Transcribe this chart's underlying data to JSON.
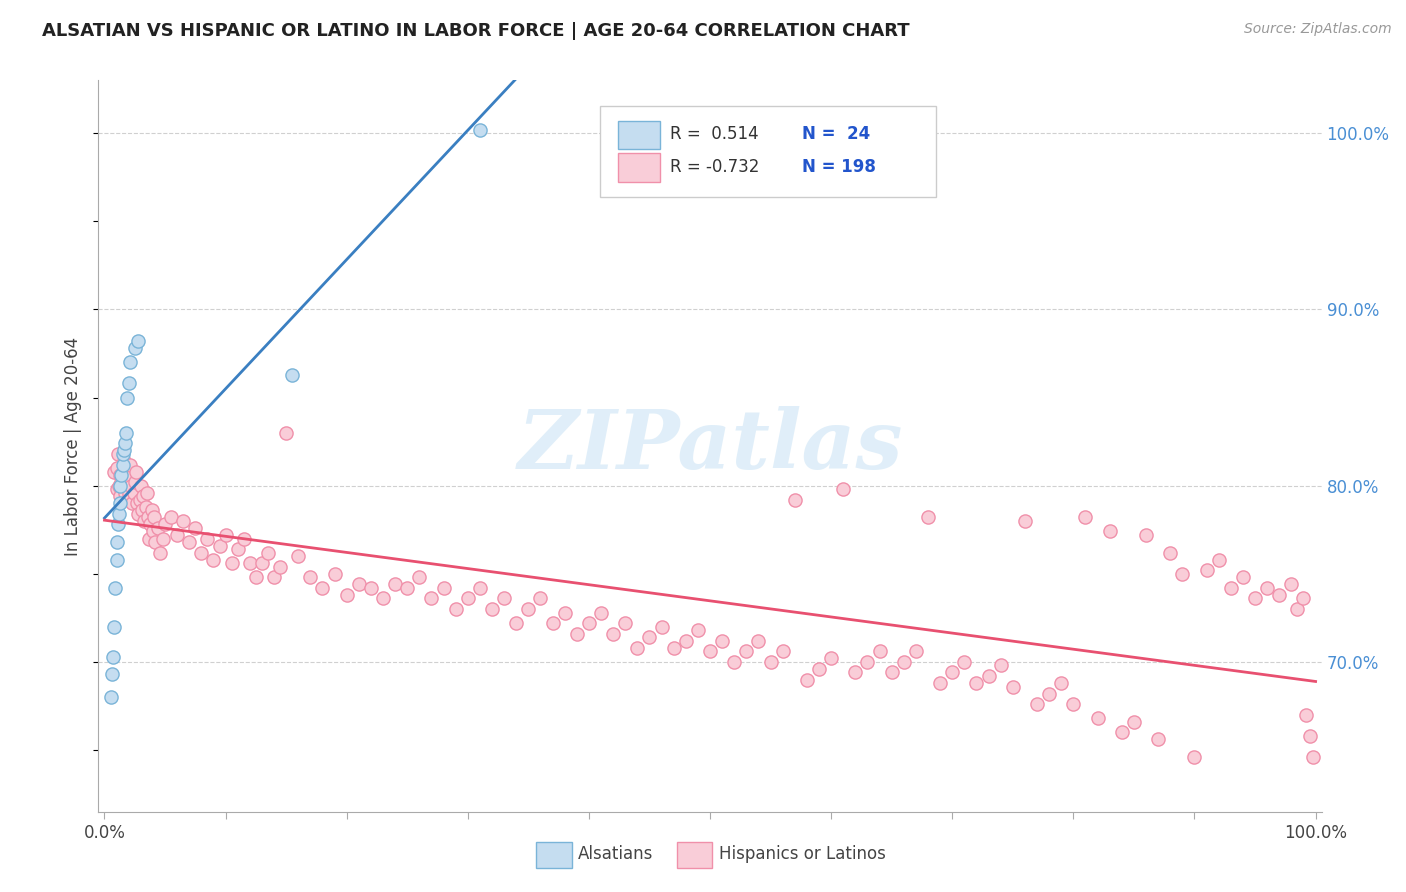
{
  "title": "ALSATIAN VS HISPANIC OR LATINO IN LABOR FORCE | AGE 20-64 CORRELATION CHART",
  "source": "Source: ZipAtlas.com",
  "ylabel": "In Labor Force | Age 20-64",
  "watermark": "ZIPatlas",
  "blue_edge": "#7ab4d8",
  "blue_fill": "#c5ddf0",
  "pink_edge": "#f090aa",
  "pink_fill": "#f9cdd8",
  "line_blue": "#3a7fc1",
  "line_pink": "#e85070",
  "right_tick_color": "#4a8fd4",
  "text_color": "#444444",
  "grid_color": "#d0d0d0",
  "xlim": [
    -0.005,
    1.005
  ],
  "ylim": [
    0.615,
    1.03
  ],
  "yticks": [
    0.7,
    0.8,
    0.9,
    1.0
  ],
  "ytick_labels": [
    "70.0%",
    "80.0%",
    "90.0%",
    "100.0%"
  ],
  "alsatian_x": [
    0.005,
    0.006,
    0.007,
    0.008,
    0.009,
    0.01,
    0.01,
    0.011,
    0.012,
    0.013,
    0.013,
    0.014,
    0.015,
    0.015,
    0.016,
    0.017,
    0.018,
    0.019,
    0.02,
    0.021,
    0.025,
    0.028,
    0.155,
    0.31
  ],
  "alsatian_y": [
    0.68,
    0.693,
    0.703,
    0.72,
    0.742,
    0.758,
    0.768,
    0.778,
    0.784,
    0.79,
    0.8,
    0.806,
    0.812,
    0.818,
    0.82,
    0.824,
    0.83,
    0.85,
    0.858,
    0.87,
    0.878,
    0.882,
    0.863,
    1.002
  ],
  "hispanic_x_low": [
    0.008,
    0.01,
    0.01,
    0.011,
    0.012,
    0.013,
    0.013,
    0.014,
    0.015,
    0.016,
    0.017,
    0.018,
    0.019,
    0.02,
    0.02,
    0.021,
    0.022,
    0.023,
    0.024,
    0.025,
    0.026,
    0.027,
    0.028,
    0.029,
    0.03,
    0.031,
    0.032,
    0.033,
    0.034,
    0.035,
    0.036,
    0.037,
    0.038,
    0.039,
    0.04,
    0.041,
    0.042,
    0.044,
    0.046,
    0.048
  ],
  "hispanic_y_low": [
    0.808,
    0.798,
    0.81,
    0.818,
    0.8,
    0.794,
    0.806,
    0.802,
    0.808,
    0.814,
    0.796,
    0.808,
    0.8,
    0.795,
    0.805,
    0.812,
    0.8,
    0.79,
    0.796,
    0.802,
    0.808,
    0.79,
    0.784,
    0.792,
    0.8,
    0.786,
    0.794,
    0.78,
    0.788,
    0.796,
    0.782,
    0.77,
    0.778,
    0.786,
    0.774,
    0.782,
    0.768,
    0.776,
    0.762,
    0.77
  ],
  "hispanic_x_mid": [
    0.05,
    0.055,
    0.06,
    0.065,
    0.07,
    0.075,
    0.08,
    0.085,
    0.09,
    0.095,
    0.1,
    0.105,
    0.11,
    0.115,
    0.12,
    0.125,
    0.13,
    0.135,
    0.14,
    0.145,
    0.15,
    0.16,
    0.17,
    0.18,
    0.19,
    0.2,
    0.21,
    0.22,
    0.23,
    0.24,
    0.25,
    0.26,
    0.27,
    0.28,
    0.29,
    0.3,
    0.31,
    0.32,
    0.33,
    0.34,
    0.35,
    0.36,
    0.37,
    0.38,
    0.39,
    0.4,
    0.41,
    0.42,
    0.43,
    0.44,
    0.45,
    0.46,
    0.47,
    0.48,
    0.49,
    0.5,
    0.51,
    0.52,
    0.53,
    0.54,
    0.55,
    0.56,
    0.57,
    0.58,
    0.59,
    0.6
  ],
  "hispanic_y_mid": [
    0.778,
    0.782,
    0.772,
    0.78,
    0.768,
    0.776,
    0.762,
    0.77,
    0.758,
    0.766,
    0.772,
    0.756,
    0.764,
    0.77,
    0.756,
    0.748,
    0.756,
    0.762,
    0.748,
    0.754,
    0.83,
    0.76,
    0.748,
    0.742,
    0.75,
    0.738,
    0.744,
    0.742,
    0.736,
    0.744,
    0.742,
    0.748,
    0.736,
    0.742,
    0.73,
    0.736,
    0.742,
    0.73,
    0.736,
    0.722,
    0.73,
    0.736,
    0.722,
    0.728,
    0.716,
    0.722,
    0.728,
    0.716,
    0.722,
    0.708,
    0.714,
    0.72,
    0.708,
    0.712,
    0.718,
    0.706,
    0.712,
    0.7,
    0.706,
    0.712,
    0.7,
    0.706,
    0.792,
    0.69,
    0.696,
    0.702
  ],
  "hispanic_x_high": [
    0.61,
    0.62,
    0.63,
    0.64,
    0.65,
    0.66,
    0.67,
    0.68,
    0.69,
    0.7,
    0.71,
    0.72,
    0.73,
    0.74,
    0.75,
    0.76,
    0.77,
    0.78,
    0.79,
    0.8,
    0.81,
    0.82,
    0.83,
    0.84,
    0.85,
    0.86,
    0.87,
    0.88,
    0.89,
    0.9,
    0.91,
    0.92,
    0.93,
    0.94,
    0.95,
    0.96,
    0.97,
    0.98,
    0.985,
    0.99,
    0.992,
    0.995,
    0.998
  ],
  "hispanic_y_high": [
    0.798,
    0.694,
    0.7,
    0.706,
    0.694,
    0.7,
    0.706,
    0.782,
    0.688,
    0.694,
    0.7,
    0.688,
    0.692,
    0.698,
    0.686,
    0.78,
    0.676,
    0.682,
    0.688,
    0.676,
    0.782,
    0.668,
    0.774,
    0.66,
    0.666,
    0.772,
    0.656,
    0.762,
    0.75,
    0.646,
    0.752,
    0.758,
    0.742,
    0.748,
    0.736,
    0.742,
    0.738,
    0.744,
    0.73,
    0.736,
    0.67,
    0.658,
    0.646
  ]
}
